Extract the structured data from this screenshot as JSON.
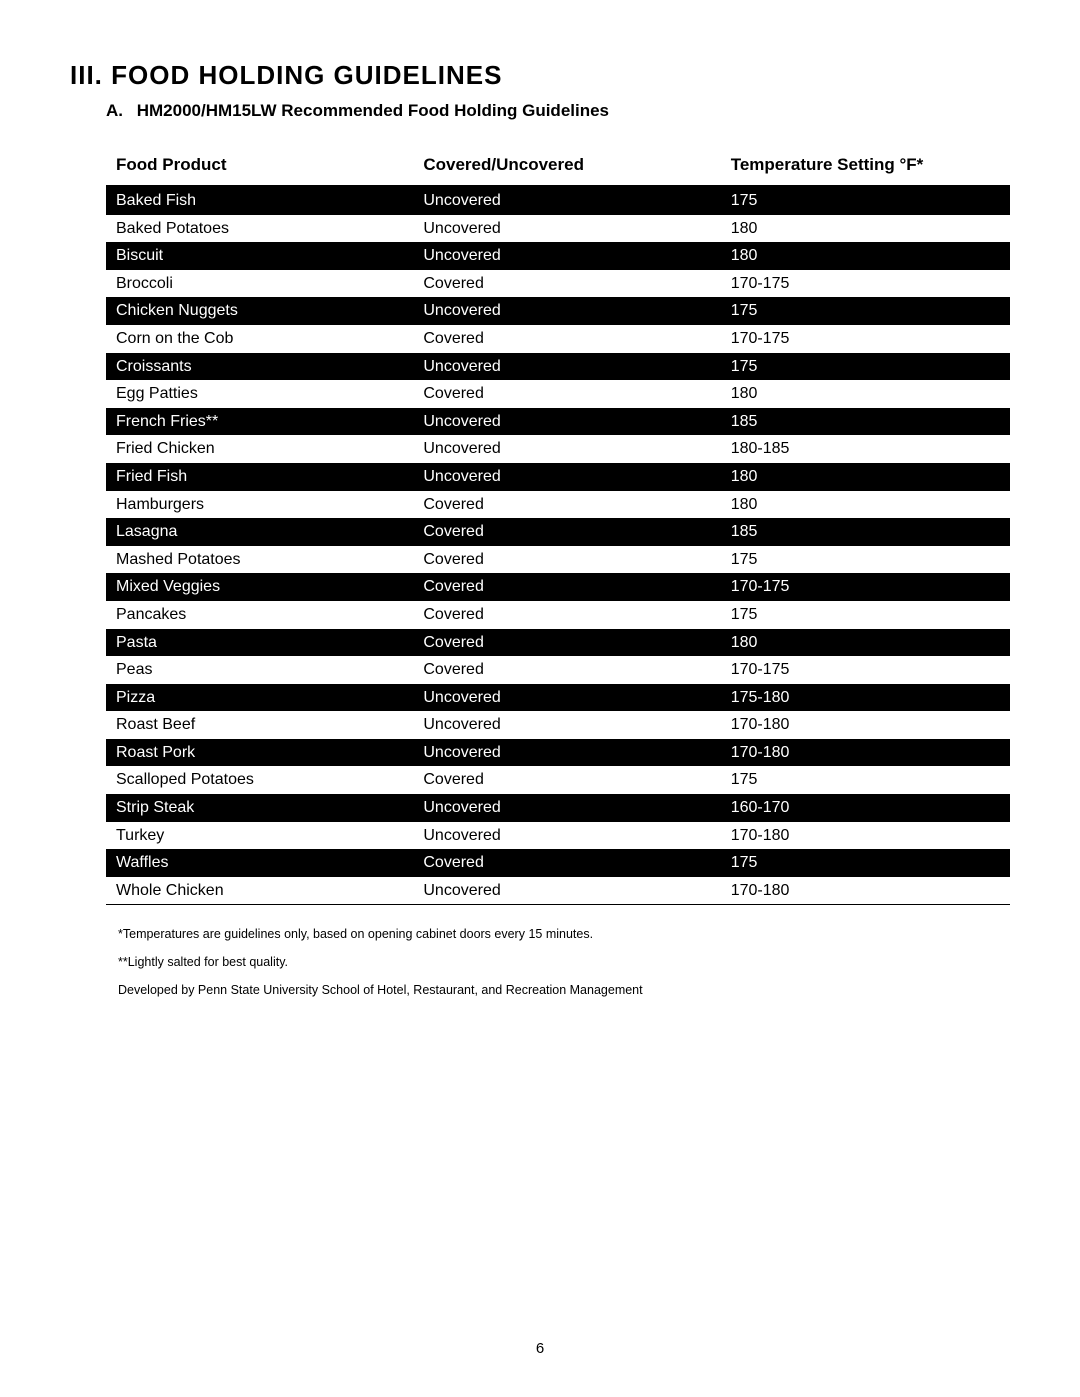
{
  "section_title": "III. Food Holding Guidelines",
  "subsection": {
    "letter": "A.",
    "text": "HM2000/HM15LW Recommended Food Holding Guidelines"
  },
  "table": {
    "columns": [
      "Food Product",
      "Covered/Uncovered",
      "Temperature Setting °F*"
    ],
    "col_widths_pct": [
      34,
      34,
      32
    ],
    "header_border_color": "#000000",
    "dark_row_bg": "#000000",
    "dark_row_text": "#ffffff",
    "light_row_bg": "#ffffff",
    "light_row_text": "#000000",
    "font_size_pt": 12,
    "rows": [
      {
        "product": "Baked Fish",
        "cover": "Uncovered",
        "temp": "175"
      },
      {
        "product": "Baked Potatoes",
        "cover": "Uncovered",
        "temp": "180"
      },
      {
        "product": "Biscuit",
        "cover": "Uncovered",
        "temp": "180"
      },
      {
        "product": "Broccoli",
        "cover": "Covered",
        "temp": "170-175"
      },
      {
        "product": "Chicken Nuggets",
        "cover": "Uncovered",
        "temp": "175"
      },
      {
        "product": "Corn on the Cob",
        "cover": "Covered",
        "temp": "170-175"
      },
      {
        "product": "Croissants",
        "cover": "Uncovered",
        "temp": "175"
      },
      {
        "product": "Egg Patties",
        "cover": "Covered",
        "temp": "180"
      },
      {
        "product": "French Fries**",
        "cover": "Uncovered",
        "temp": "185"
      },
      {
        "product": "Fried Chicken",
        "cover": "Uncovered",
        "temp": "180-185"
      },
      {
        "product": "Fried Fish",
        "cover": "Uncovered",
        "temp": "180"
      },
      {
        "product": "Hamburgers",
        "cover": "Covered",
        "temp": "180"
      },
      {
        "product": "Lasagna",
        "cover": "Covered",
        "temp": "185"
      },
      {
        "product": "Mashed Potatoes",
        "cover": "Covered",
        "temp": "175"
      },
      {
        "product": "Mixed Veggies",
        "cover": "Covered",
        "temp": "170-175"
      },
      {
        "product": "Pancakes",
        "cover": "Covered",
        "temp": "175"
      },
      {
        "product": "Pasta",
        "cover": "Covered",
        "temp": "180"
      },
      {
        "product": "Peas",
        "cover": "Covered",
        "temp": "170-175"
      },
      {
        "product": "Pizza",
        "cover": "Uncovered",
        "temp": "175-180"
      },
      {
        "product": "Roast Beef",
        "cover": "Uncovered",
        "temp": "170-180"
      },
      {
        "product": "Roast Pork",
        "cover": "Uncovered",
        "temp": "170-180"
      },
      {
        "product": "Scalloped Potatoes",
        "cover": "Covered",
        "temp": "175"
      },
      {
        "product": "Strip Steak",
        "cover": "Uncovered",
        "temp": "160-170"
      },
      {
        "product": "Turkey",
        "cover": "Uncovered",
        "temp": "170-180"
      },
      {
        "product": "Waffles",
        "cover": "Covered",
        "temp": "175"
      },
      {
        "product": "Whole Chicken",
        "cover": "Uncovered",
        "temp": "170-180"
      }
    ]
  },
  "footnotes": [
    "*Temperatures are guidelines only, based on opening cabinet doors every 15 minutes.",
    "**Lightly salted for best quality.",
    "Developed by Penn State University School of Hotel, Restaurant, and Recreation Management"
  ],
  "page_number": "6"
}
